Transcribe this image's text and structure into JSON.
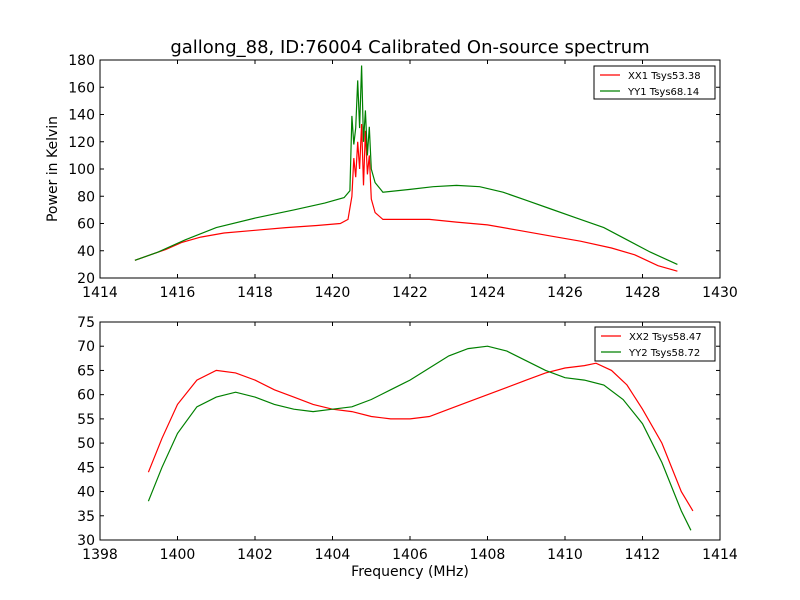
{
  "chart_data": [
    {
      "type": "line",
      "title": "gallong_88, ID:76004 Calibrated On-source spectrum",
      "xlabel": "",
      "ylabel": "Power in Kelvin",
      "xlim": [
        1414,
        1430
      ],
      "ylim": [
        20,
        180
      ],
      "xticks": [
        1414,
        1416,
        1418,
        1420,
        1422,
        1424,
        1426,
        1428,
        1430
      ],
      "yticks": [
        20,
        40,
        60,
        80,
        100,
        120,
        140,
        160,
        180
      ],
      "grid": false,
      "legend_position": "top-right",
      "series": [
        {
          "name": "XX1 Tsys53.38",
          "color": "#ff0000",
          "points": [
            [
              1414.9,
              33
            ],
            [
              1415.3,
              37
            ],
            [
              1415.7,
              41
            ],
            [
              1416.1,
              46
            ],
            [
              1416.6,
              50
            ],
            [
              1417.2,
              53
            ],
            [
              1418,
              55
            ],
            [
              1418.8,
              57
            ],
            [
              1419.6,
              58.5
            ],
            [
              1420.2,
              60
            ],
            [
              1420.4,
              63
            ],
            [
              1420.5,
              80
            ],
            [
              1420.55,
              108
            ],
            [
              1420.6,
              94
            ],
            [
              1420.65,
              120
            ],
            [
              1420.7,
              100
            ],
            [
              1420.75,
              133
            ],
            [
              1420.8,
              88
            ],
            [
              1420.85,
              128
            ],
            [
              1420.9,
              96
            ],
            [
              1420.95,
              110
            ],
            [
              1421,
              78
            ],
            [
              1421.1,
              68
            ],
            [
              1421.3,
              63
            ],
            [
              1421.8,
              63
            ],
            [
              1422.5,
              63
            ],
            [
              1423.2,
              61
            ],
            [
              1424,
              59
            ],
            [
              1424.8,
              55
            ],
            [
              1425.6,
              51
            ],
            [
              1426.4,
              47
            ],
            [
              1427.2,
              42
            ],
            [
              1427.8,
              37
            ],
            [
              1428.4,
              29
            ],
            [
              1428.9,
              25
            ]
          ]
        },
        {
          "name": "YY1 Tsys68.14",
          "color": "#008000",
          "points": [
            [
              1414.9,
              33
            ],
            [
              1415.5,
              39
            ],
            [
              1416.2,
              48
            ],
            [
              1417,
              57
            ],
            [
              1418,
              64
            ],
            [
              1419,
              70
            ],
            [
              1419.8,
              75
            ],
            [
              1420.3,
              79
            ],
            [
              1420.45,
              84
            ],
            [
              1420.5,
              139
            ],
            [
              1420.55,
              118
            ],
            [
              1420.6,
              130
            ],
            [
              1420.65,
              165
            ],
            [
              1420.7,
              130
            ],
            [
              1420.75,
              176
            ],
            [
              1420.8,
              120
            ],
            [
              1420.85,
              143
            ],
            [
              1420.9,
              110
            ],
            [
              1420.95,
              131
            ],
            [
              1421,
              100
            ],
            [
              1421.1,
              90
            ],
            [
              1421.3,
              83
            ],
            [
              1422,
              85
            ],
            [
              1422.6,
              87
            ],
            [
              1423.2,
              88
            ],
            [
              1423.8,
              87
            ],
            [
              1424.4,
              83
            ],
            [
              1425,
              77
            ],
            [
              1425.6,
              71
            ],
            [
              1426.3,
              64
            ],
            [
              1427,
              57
            ],
            [
              1427.6,
              48
            ],
            [
              1428.2,
              39
            ],
            [
              1428.9,
              30
            ]
          ]
        }
      ]
    },
    {
      "type": "line",
      "title": "",
      "xlabel": "Frequency (MHz)",
      "ylabel": "",
      "xlim": [
        1398,
        1414
      ],
      "ylim": [
        30,
        75
      ],
      "xticks": [
        1398,
        1400,
        1402,
        1404,
        1406,
        1408,
        1410,
        1412,
        1414
      ],
      "yticks": [
        30,
        35,
        40,
        45,
        50,
        55,
        60,
        65,
        70,
        75
      ],
      "grid": false,
      "legend_position": "top-right",
      "series": [
        {
          "name": "XX2 Tsys58.47",
          "color": "#ff0000",
          "points": [
            [
              1399.25,
              44
            ],
            [
              1399.6,
              51
            ],
            [
              1400,
              58
            ],
            [
              1400.5,
              63
            ],
            [
              1401,
              65
            ],
            [
              1401.5,
              64.5
            ],
            [
              1402,
              63
            ],
            [
              1402.5,
              61
            ],
            [
              1403,
              59.5
            ],
            [
              1403.5,
              58
            ],
            [
              1404,
              57
            ],
            [
              1404.5,
              56.5
            ],
            [
              1405,
              55.5
            ],
            [
              1405.5,
              55
            ],
            [
              1406,
              55
            ],
            [
              1406.5,
              55.5
            ],
            [
              1407,
              57
            ],
            [
              1407.5,
              58.5
            ],
            [
              1408,
              60
            ],
            [
              1408.5,
              61.5
            ],
            [
              1409,
              63
            ],
            [
              1409.5,
              64.5
            ],
            [
              1410,
              65.5
            ],
            [
              1410.5,
              66
            ],
            [
              1410.8,
              66.5
            ],
            [
              1411.2,
              65
            ],
            [
              1411.6,
              62
            ],
            [
              1412,
              57
            ],
            [
              1412.5,
              50
            ],
            [
              1413,
              40
            ],
            [
              1413.3,
              36
            ]
          ]
        },
        {
          "name": "YY2 Tsys58.72",
          "color": "#008000",
          "points": [
            [
              1399.25,
              38
            ],
            [
              1399.6,
              45
            ],
            [
              1400,
              52
            ],
            [
              1400.5,
              57.5
            ],
            [
              1401,
              59.5
            ],
            [
              1401.5,
              60.5
            ],
            [
              1402,
              59.5
            ],
            [
              1402.5,
              58
            ],
            [
              1403,
              57
            ],
            [
              1403.5,
              56.5
            ],
            [
              1404,
              57
            ],
            [
              1404.5,
              57.5
            ],
            [
              1405,
              59
            ],
            [
              1405.5,
              61
            ],
            [
              1406,
              63
            ],
            [
              1406.5,
              65.5
            ],
            [
              1407,
              68
            ],
            [
              1407.5,
              69.5
            ],
            [
              1408,
              70
            ],
            [
              1408.5,
              69
            ],
            [
              1409,
              67
            ],
            [
              1409.5,
              65
            ],
            [
              1410,
              63.5
            ],
            [
              1410.5,
              63
            ],
            [
              1411,
              62
            ],
            [
              1411.5,
              59
            ],
            [
              1412,
              54
            ],
            [
              1412.5,
              46
            ],
            [
              1413,
              36
            ],
            [
              1413.25,
              32
            ]
          ]
        }
      ]
    }
  ]
}
